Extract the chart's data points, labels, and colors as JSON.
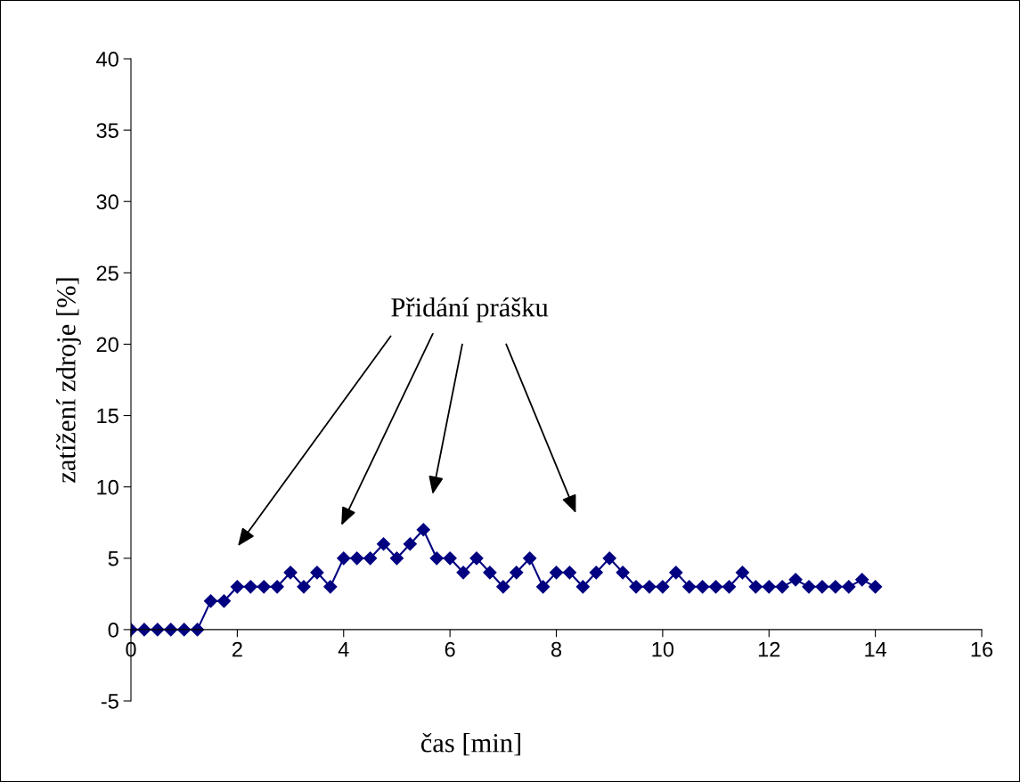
{
  "chart_data": {
    "type": "line",
    "xlabel": "čas [min]",
    "ylabel": "zatížení zdroje [%]",
    "x": [
      0,
      0.25,
      0.5,
      0.75,
      1,
      1.25,
      1.5,
      1.75,
      2,
      2.25,
      2.5,
      2.75,
      3,
      3.25,
      3.5,
      3.75,
      4,
      4.25,
      4.5,
      4.75,
      5,
      5.25,
      5.5,
      5.75,
      6,
      6.25,
      6.5,
      6.75,
      7,
      7.25,
      7.5,
      7.75,
      8,
      8.25,
      8.5,
      8.75,
      9,
      9.25,
      9.5,
      9.75,
      10,
      10.25,
      10.5,
      10.75,
      11,
      11.25,
      11.5,
      11.75,
      12,
      12.25,
      12.5,
      12.75,
      13,
      13.25,
      13.5,
      13.75,
      14
    ],
    "series": [
      {
        "color": "#000080",
        "values": [
          0,
          0,
          0,
          0,
          0,
          0,
          2,
          2,
          3,
          3,
          3,
          3,
          4,
          3,
          4,
          3,
          5,
          5,
          5,
          6,
          5,
          6,
          7,
          5,
          5,
          4,
          5,
          4,
          3,
          4,
          5,
          3,
          4,
          4,
          3,
          4,
          5,
          4,
          3,
          3,
          3,
          4,
          3,
          3,
          3,
          3,
          4,
          3,
          3,
          3,
          3.5,
          3,
          3,
          3,
          3,
          3.5,
          3
        ]
      }
    ],
    "xlim": [
      0,
      16
    ],
    "xticks": [
      0,
      2,
      4,
      6,
      8,
      10,
      12,
      14,
      16
    ],
    "ylim": [
      -5,
      40
    ],
    "yticks": [
      -5,
      0,
      5,
      10,
      15,
      20,
      25,
      30,
      35,
      40
    ],
    "marker": "diamond",
    "line_style": "solid",
    "grid": false,
    "legend": false,
    "annotations": [
      "Přidání prášku"
    ]
  }
}
